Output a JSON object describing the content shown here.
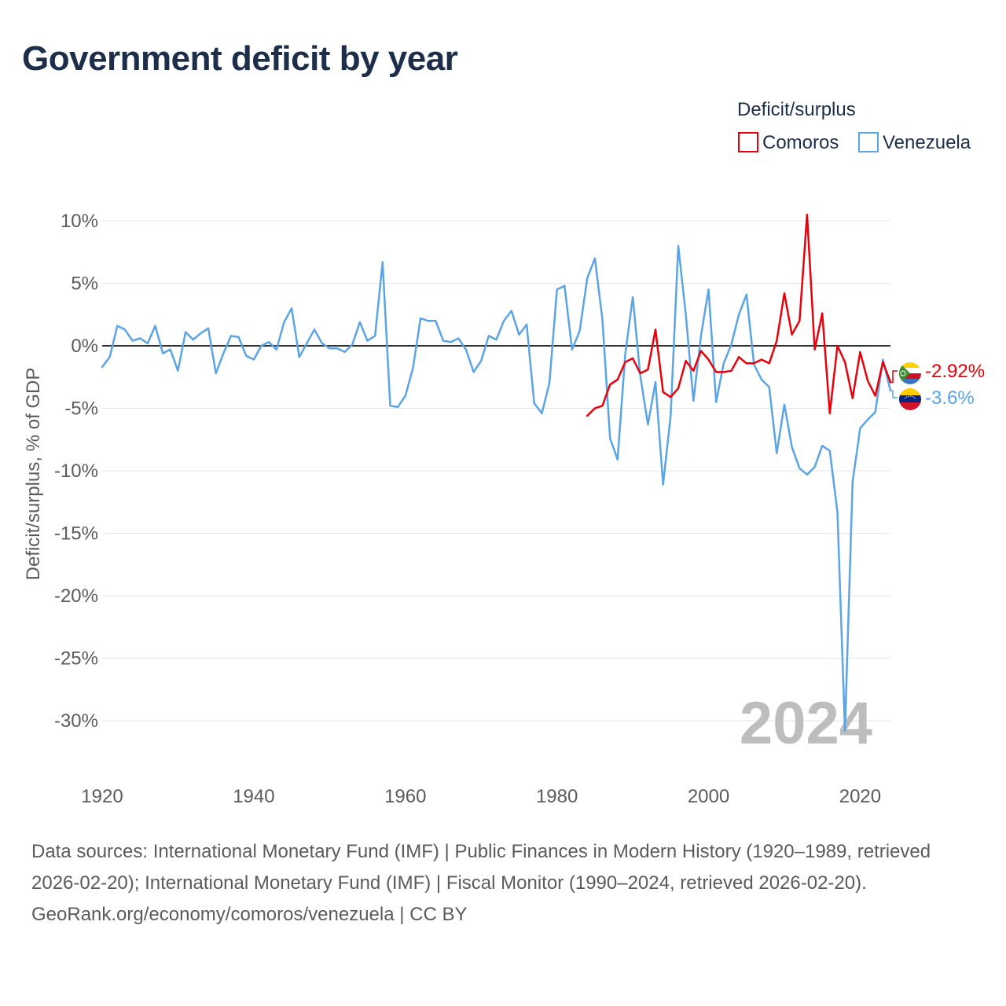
{
  "chart_data": {
    "type": "line",
    "title": "Government deficit by year",
    "ylabel": "Deficit/surplus, % of GDP",
    "xlabel": "",
    "xlim": [
      1920,
      2024
    ],
    "ylim": [
      -33,
      11
    ],
    "x_ticks": [
      1920,
      1940,
      1960,
      1980,
      2000,
      2020
    ],
    "y_ticks": [
      10,
      5,
      0,
      -5,
      -10,
      -15,
      -20,
      -25,
      -30
    ],
    "x_tick_labels": [
      "1920",
      "1940",
      "1960",
      "1980",
      "2000",
      "2020"
    ],
    "y_tick_labels": [
      "10%",
      "5%",
      "0%",
      "-5%",
      "-10%",
      "-15%",
      "-20%",
      "-25%",
      "-30%"
    ],
    "grid": true,
    "legend_title": "Deficit/surplus",
    "legend_position": "top-right",
    "year_watermark": "2024",
    "series": [
      {
        "name": "Comoros",
        "color": "#e8000b",
        "end_label": "-2.92%",
        "x": [
          1984,
          1985,
          1986,
          1987,
          1988,
          1989,
          1990,
          1991,
          1992,
          1993,
          1994,
          1995,
          1996,
          1997,
          1998,
          1999,
          2000,
          2001,
          2002,
          2003,
          2004,
          2005,
          2006,
          2007,
          2008,
          2009,
          2010,
          2011,
          2012,
          2013,
          2014,
          2015,
          2016,
          2017,
          2018,
          2019,
          2020,
          2021,
          2022,
          2023,
          2024
        ],
        "y": [
          -5.6,
          -5.0,
          -4.8,
          -3.1,
          -2.7,
          -1.3,
          -1.0,
          -2.2,
          -1.9,
          1.3,
          -3.7,
          -4.1,
          -3.4,
          -1.2,
          -2.0,
          -0.4,
          -1.1,
          -2.1,
          -2.1,
          -2.0,
          -0.9,
          -1.4,
          -1.4,
          -1.1,
          -1.4,
          0.4,
          4.2,
          0.9,
          2.0,
          10.5,
          -0.3,
          2.6,
          -5.4,
          0.0,
          -1.3,
          -4.2,
          -0.5,
          -2.8,
          -4.0,
          -1.3,
          -2.92
        ]
      },
      {
        "name": "Venezuela",
        "color": "#5ba4e5",
        "end_label": "-3.6%",
        "x": [
          1920,
          1921,
          1922,
          1923,
          1924,
          1925,
          1926,
          1927,
          1928,
          1929,
          1930,
          1931,
          1932,
          1933,
          1934,
          1935,
          1936,
          1937,
          1938,
          1939,
          1940,
          1941,
          1942,
          1943,
          1944,
          1945,
          1946,
          1947,
          1948,
          1949,
          1950,
          1951,
          1952,
          1953,
          1954,
          1955,
          1956,
          1957,
          1958,
          1959,
          1960,
          1961,
          1962,
          1963,
          1964,
          1965,
          1966,
          1967,
          1968,
          1969,
          1970,
          1971,
          1972,
          1973,
          1974,
          1975,
          1976,
          1977,
          1978,
          1979,
          1980,
          1981,
          1982,
          1983,
          1984,
          1985,
          1986,
          1987,
          1988,
          1989,
          1990,
          1991,
          1992,
          1993,
          1994,
          1995,
          1996,
          1997,
          1998,
          1999,
          2000,
          2001,
          2002,
          2003,
          2004,
          2005,
          2006,
          2007,
          2008,
          2009,
          2010,
          2011,
          2012,
          2013,
          2014,
          2015,
          2016,
          2017,
          2018,
          2019,
          2020,
          2021,
          2022,
          2023,
          2024
        ],
        "y": [
          -1.7,
          -0.9,
          1.6,
          1.3,
          0.4,
          0.6,
          0.2,
          1.6,
          -0.6,
          -0.3,
          -2.0,
          1.1,
          0.5,
          1.0,
          1.4,
          -2.2,
          -0.6,
          0.8,
          0.7,
          -0.8,
          -1.1,
          0.0,
          0.3,
          -0.3,
          1.9,
          3.0,
          -0.9,
          0.2,
          1.3,
          0.2,
          -0.2,
          -0.2,
          -0.5,
          0.1,
          1.9,
          0.4,
          0.8,
          6.7,
          -4.8,
          -4.9,
          -4.0,
          -1.8,
          2.2,
          2.0,
          2.0,
          0.4,
          0.3,
          0.6,
          -0.3,
          -2.1,
          -1.2,
          0.8,
          0.5,
          2.0,
          2.8,
          0.9,
          1.7,
          -4.6,
          -5.4,
          -3.0,
          4.5,
          4.8,
          -0.3,
          1.2,
          5.4,
          7.0,
          2.1,
          -7.4,
          -9.1,
          -0.7,
          3.9,
          -2.4,
          -6.3,
          -2.9,
          -11.1,
          -5.6,
          8.0,
          2.5,
          -4.4,
          0.8,
          4.5,
          -4.5,
          -1.4,
          0.1,
          2.5,
          4.1,
          -1.5,
          -2.7,
          -3.3,
          -8.6,
          -4.7,
          -8.1,
          -9.8,
          -10.3,
          -9.7,
          -8.0,
          -8.4,
          -13.3,
          -30.8,
          -10.9,
          -6.6,
          -5.9,
          -5.3,
          -1.1,
          -3.6
        ]
      }
    ]
  },
  "footer": {
    "sources": "Data sources: International Monetary Fund (IMF) | Public Finances in Modern History (1920–1989, retrieved 2026-02-20); International Monetary Fund (IMF) | Fiscal Monitor (1990–2024, retrieved 2026-02-20).",
    "credit": "GeoRank.org/economy/comoros/venezuela | CC BY"
  }
}
